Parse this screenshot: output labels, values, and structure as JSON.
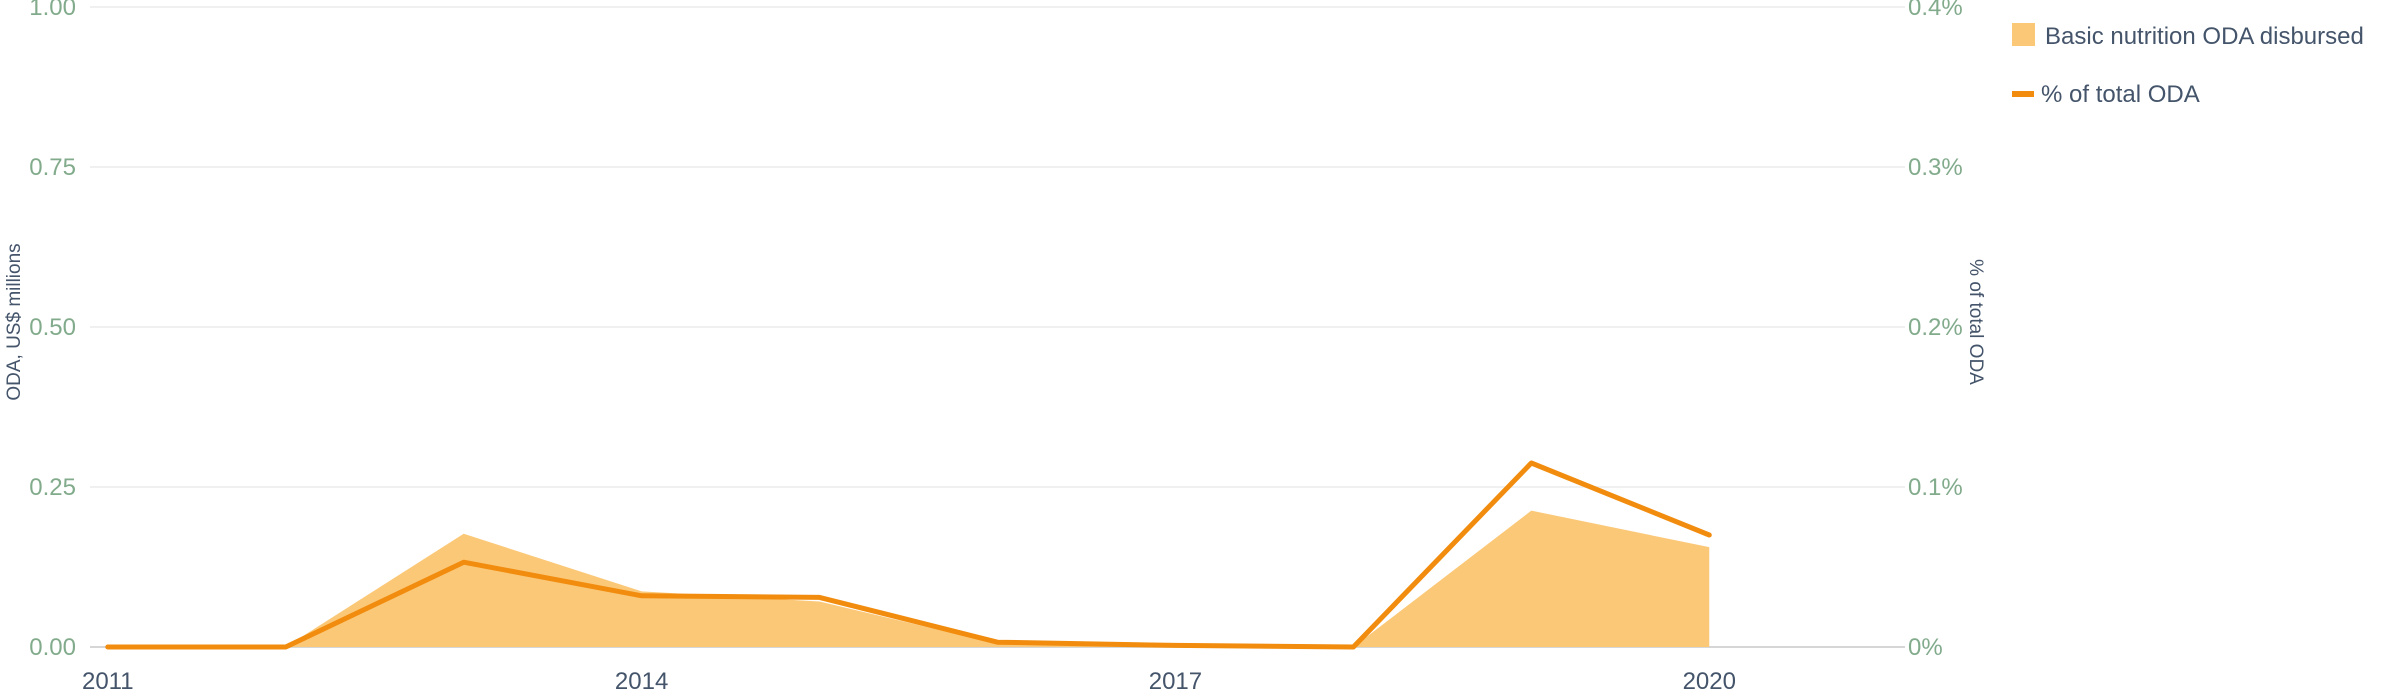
{
  "chart_data": {
    "type": "area",
    "x": [
      2011,
      2012,
      2013,
      2014,
      2015,
      2016,
      2017,
      2018,
      2019,
      2020
    ],
    "xticks": [
      "2011",
      "2014",
      "2017",
      "2020"
    ],
    "series": [
      {
        "name": "Basic nutrition ODA disbursed",
        "type": "area",
        "axis": "left",
        "values": [
          0,
          0,
          0.177,
          0.087,
          0.071,
          0.005,
          0.004,
          0,
          0.213,
          0.156
        ],
        "color": "#fbc878"
      },
      {
        "name": "% of total ODA",
        "type": "line",
        "axis": "right",
        "values": [
          0,
          0,
          0.053,
          0.032,
          0.031,
          0.003,
          0.001,
          0,
          0.115,
          0.07
        ],
        "color": "#f18c0e"
      }
    ],
    "y_left": {
      "label": "ODA, US$ millions",
      "range": [
        0,
        1
      ],
      "ticks": [
        "0.00",
        "0.25",
        "0.50",
        "0.75",
        "1.00"
      ]
    },
    "y_right": {
      "label": "% of total ODA",
      "range": [
        0,
        0.4
      ],
      "ticks": [
        "0%",
        "0.1%",
        "0.2%",
        "0.3%",
        "0.4%"
      ]
    },
    "grid": true,
    "legend_position": "top-right"
  }
}
